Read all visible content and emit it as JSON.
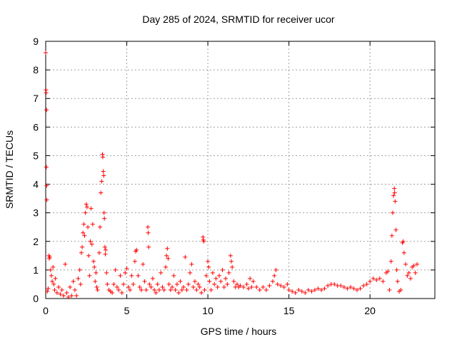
{
  "chart_data": {
    "type": "scatter",
    "title": "Day 285 of 2024, SRMTID for receiver ucor",
    "xlabel": "GPS time / hours",
    "ylabel": "SRMTID / TECUs",
    "xlim": [
      0,
      24
    ],
    "ylim": [
      0,
      9
    ],
    "xticks": [
      0,
      5,
      10,
      15,
      20
    ],
    "yticks": [
      0,
      1,
      2,
      3,
      4,
      5,
      6,
      7,
      8,
      9
    ],
    "grid": true,
    "marker": "plus",
    "series_color": "#ff0000",
    "series": [
      {
        "name": "SRMTID",
        "points": [
          [
            0.0,
            8.6
          ],
          [
            0.02,
            7.3
          ],
          [
            0.03,
            7.2
          ],
          [
            0.05,
            6.6
          ],
          [
            0.04,
            4.6
          ],
          [
            0.06,
            3.95
          ],
          [
            0.07,
            3.45
          ],
          [
            0.1,
            0.25
          ],
          [
            0.15,
            0.35
          ],
          [
            0.2,
            1.5
          ],
          [
            0.22,
            1.4
          ],
          [
            0.25,
            1.45
          ],
          [
            0.3,
            1.0
          ],
          [
            0.35,
            0.8
          ],
          [
            0.4,
            0.6
          ],
          [
            0.45,
            1.1
          ],
          [
            0.5,
            0.5
          ],
          [
            0.55,
            0.3
          ],
          [
            0.6,
            0.7
          ],
          [
            0.7,
            0.2
          ],
          [
            0.8,
            0.4
          ],
          [
            0.9,
            0.15
          ],
          [
            1.0,
            0.3
          ],
          [
            1.1,
            0.1
          ],
          [
            1.2,
            1.2
          ],
          [
            1.3,
            0.2
          ],
          [
            1.4,
            0.05
          ],
          [
            1.5,
            0.4
          ],
          [
            1.6,
            0.1
          ],
          [
            1.7,
            0.6
          ],
          [
            1.8,
            0.3
          ],
          [
            1.9,
            0.1
          ],
          [
            2.0,
            0.7
          ],
          [
            2.1,
            1.0
          ],
          [
            2.15,
            0.5
          ],
          [
            2.2,
            1.6
          ],
          [
            2.25,
            1.8
          ],
          [
            2.3,
            2.3
          ],
          [
            2.35,
            2.6
          ],
          [
            2.4,
            2.2
          ],
          [
            2.45,
            3.0
          ],
          [
            2.5,
            3.3
          ],
          [
            2.55,
            3.2
          ],
          [
            2.6,
            2.5
          ],
          [
            2.65,
            1.5
          ],
          [
            2.7,
            0.8
          ],
          [
            2.75,
            2.0
          ],
          [
            2.8,
            3.15
          ],
          [
            2.85,
            1.9
          ],
          [
            2.9,
            2.6
          ],
          [
            2.95,
            1.3
          ],
          [
            3.0,
            1.1
          ],
          [
            3.05,
            0.6
          ],
          [
            3.1,
            0.9
          ],
          [
            3.15,
            0.4
          ],
          [
            3.2,
            0.3
          ],
          [
            3.3,
            1.6
          ],
          [
            3.35,
            2.5
          ],
          [
            3.4,
            3.7
          ],
          [
            3.45,
            4.1
          ],
          [
            3.5,
            5.05
          ],
          [
            3.52,
            4.95
          ],
          [
            3.55,
            4.45
          ],
          [
            3.58,
            4.3
          ],
          [
            3.6,
            3.0
          ],
          [
            3.62,
            2.8
          ],
          [
            3.65,
            1.8
          ],
          [
            3.68,
            1.55
          ],
          [
            3.7,
            1.7
          ],
          [
            3.75,
            0.9
          ],
          [
            3.8,
            0.5
          ],
          [
            3.9,
            0.3
          ],
          [
            4.0,
            0.25
          ],
          [
            4.1,
            0.2
          ],
          [
            4.2,
            0.5
          ],
          [
            4.3,
            1.0
          ],
          [
            4.4,
            0.4
          ],
          [
            4.5,
            0.3
          ],
          [
            4.6,
            0.8
          ],
          [
            4.7,
            0.2
          ],
          [
            4.8,
            0.5
          ],
          [
            4.9,
            0.9
          ],
          [
            5.0,
            1.05
          ],
          [
            5.1,
            0.4
          ],
          [
            5.2,
            0.3
          ],
          [
            5.3,
            0.8
          ],
          [
            5.4,
            0.5
          ],
          [
            5.5,
            1.3
          ],
          [
            5.55,
            1.65
          ],
          [
            5.6,
            1.7
          ],
          [
            5.7,
            0.8
          ],
          [
            5.8,
            0.4
          ],
          [
            5.9,
            0.3
          ],
          [
            6.0,
            1.2
          ],
          [
            6.1,
            0.6
          ],
          [
            6.2,
            0.3
          ],
          [
            6.3,
            2.5
          ],
          [
            6.32,
            2.3
          ],
          [
            6.35,
            1.8
          ],
          [
            6.4,
            0.5
          ],
          [
            6.5,
            0.4
          ],
          [
            6.6,
            0.7
          ],
          [
            6.7,
            0.3
          ],
          [
            6.8,
            0.2
          ],
          [
            6.9,
            0.5
          ],
          [
            7.0,
            0.3
          ],
          [
            7.1,
            0.9
          ],
          [
            7.2,
            0.4
          ],
          [
            7.3,
            0.3
          ],
          [
            7.4,
            1.1
          ],
          [
            7.45,
            1.5
          ],
          [
            7.5,
            1.75
          ],
          [
            7.55,
            1.4
          ],
          [
            7.6,
            0.5
          ],
          [
            7.7,
            0.3
          ],
          [
            7.8,
            0.4
          ],
          [
            7.9,
            0.8
          ],
          [
            8.0,
            0.3
          ],
          [
            8.1,
            0.5
          ],
          [
            8.2,
            0.2
          ],
          [
            8.3,
            0.6
          ],
          [
            8.4,
            0.3
          ],
          [
            8.5,
            0.4
          ],
          [
            8.6,
            1.45
          ],
          [
            8.7,
            0.3
          ],
          [
            8.8,
            0.5
          ],
          [
            8.9,
            0.9
          ],
          [
            9.0,
            1.2
          ],
          [
            9.1,
            0.4
          ],
          [
            9.2,
            0.6
          ],
          [
            9.3,
            0.3
          ],
          [
            9.4,
            0.5
          ],
          [
            9.5,
            0.4
          ],
          [
            9.6,
            0.2
          ],
          [
            9.7,
            2.15
          ],
          [
            9.72,
            2.05
          ],
          [
            9.75,
            2.0
          ],
          [
            9.8,
            0.3
          ],
          [
            9.9,
            0.8
          ],
          [
            10.0,
            1.3
          ],
          [
            10.05,
            1.1
          ],
          [
            10.1,
            0.6
          ],
          [
            10.2,
            0.3
          ],
          [
            10.3,
            0.9
          ],
          [
            10.4,
            0.5
          ],
          [
            10.5,
            0.7
          ],
          [
            10.6,
            0.4
          ],
          [
            10.7,
            0.8
          ],
          [
            10.8,
            0.6
          ],
          [
            10.9,
            1.0
          ],
          [
            11.0,
            0.4
          ],
          [
            11.1,
            0.7
          ],
          [
            11.2,
            0.5
          ],
          [
            11.3,
            0.9
          ],
          [
            11.4,
            1.5
          ],
          [
            11.45,
            1.3
          ],
          [
            11.5,
            1.1
          ],
          [
            11.6,
            0.6
          ],
          [
            11.7,
            0.4
          ],
          [
            11.8,
            0.5
          ],
          [
            11.9,
            0.4
          ],
          [
            12.0,
            0.45
          ],
          [
            12.2,
            0.4
          ],
          [
            12.4,
            0.5
          ],
          [
            12.5,
            0.35
          ],
          [
            12.6,
            0.7
          ],
          [
            12.7,
            0.4
          ],
          [
            12.8,
            0.6
          ],
          [
            13.0,
            0.4
          ],
          [
            13.2,
            0.3
          ],
          [
            13.4,
            0.4
          ],
          [
            13.6,
            0.3
          ],
          [
            13.8,
            0.45
          ],
          [
            14.0,
            0.6
          ],
          [
            14.1,
            0.8
          ],
          [
            14.2,
            1.0
          ],
          [
            14.3,
            0.5
          ],
          [
            14.5,
            0.45
          ],
          [
            14.7,
            0.4
          ],
          [
            14.9,
            0.5
          ],
          [
            15.0,
            0.3
          ],
          [
            15.2,
            0.25
          ],
          [
            15.4,
            0.2
          ],
          [
            15.6,
            0.3
          ],
          [
            15.8,
            0.25
          ],
          [
            16.0,
            0.2
          ],
          [
            16.2,
            0.3
          ],
          [
            16.4,
            0.25
          ],
          [
            16.6,
            0.3
          ],
          [
            16.8,
            0.35
          ],
          [
            17.0,
            0.3
          ],
          [
            17.2,
            0.35
          ],
          [
            17.4,
            0.45
          ],
          [
            17.6,
            0.5
          ],
          [
            17.8,
            0.5
          ],
          [
            18.0,
            0.45
          ],
          [
            18.2,
            0.45
          ],
          [
            18.4,
            0.4
          ],
          [
            18.6,
            0.35
          ],
          [
            18.8,
            0.4
          ],
          [
            19.0,
            0.35
          ],
          [
            19.2,
            0.3
          ],
          [
            19.4,
            0.35
          ],
          [
            19.6,
            0.45
          ],
          [
            19.8,
            0.5
          ],
          [
            20.0,
            0.6
          ],
          [
            20.2,
            0.7
          ],
          [
            20.4,
            0.65
          ],
          [
            20.6,
            0.7
          ],
          [
            20.8,
            0.6
          ],
          [
            21.0,
            0.9
          ],
          [
            21.1,
            0.95
          ],
          [
            21.2,
            0.3
          ],
          [
            21.3,
            1.3
          ],
          [
            21.35,
            2.2
          ],
          [
            21.4,
            3.0
          ],
          [
            21.45,
            3.6
          ],
          [
            21.5,
            3.85
          ],
          [
            21.52,
            3.7
          ],
          [
            21.55,
            3.4
          ],
          [
            21.6,
            2.4
          ],
          [
            21.65,
            1.0
          ],
          [
            21.7,
            0.6
          ],
          [
            21.8,
            0.25
          ],
          [
            21.9,
            0.3
          ],
          [
            22.0,
            1.95
          ],
          [
            22.05,
            2.0
          ],
          [
            22.1,
            1.6
          ],
          [
            22.2,
            1.2
          ],
          [
            22.3,
            0.8
          ],
          [
            22.4,
            0.9
          ],
          [
            22.5,
            0.7
          ],
          [
            22.6,
            1.1
          ],
          [
            22.7,
            1.15
          ],
          [
            22.8,
            0.9
          ],
          [
            22.9,
            1.2
          ]
        ]
      }
    ]
  }
}
